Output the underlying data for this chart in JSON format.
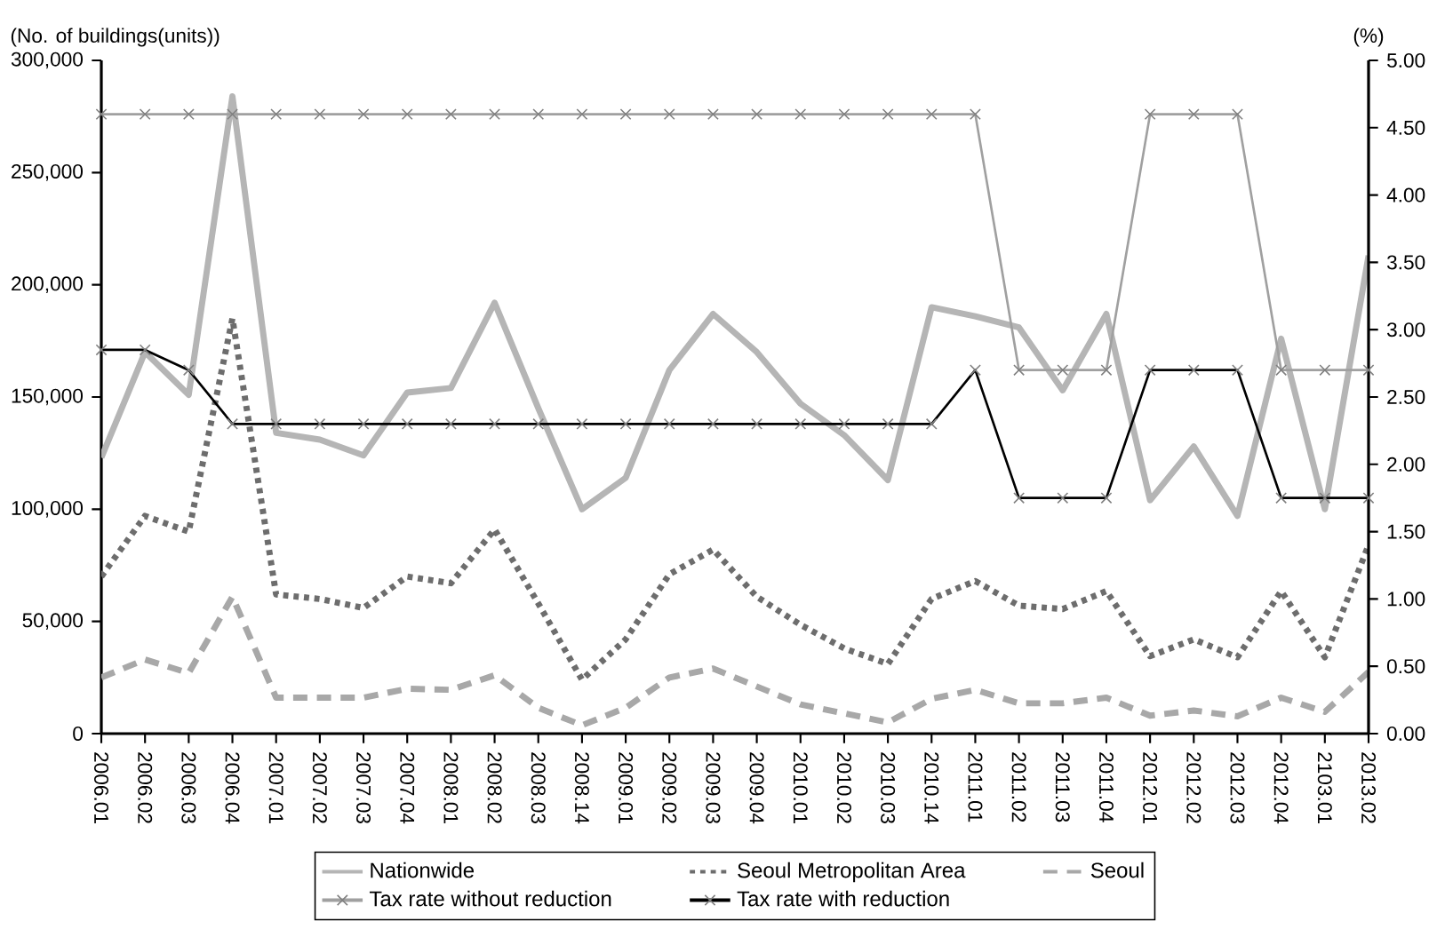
{
  "chart_data": {
    "type": "line",
    "ylabel": "(No. of buildings(units))",
    "y2label": "(%)",
    "categories": [
      "2006.01",
      "2006.02",
      "2006.03",
      "2006.04",
      "2007.01",
      "2007.02",
      "2007.03",
      "2007.04",
      "2008.01",
      "2008.02",
      "2008.03",
      "2008.14",
      "2009.01",
      "2009.02",
      "2009.03",
      "2009.04",
      "2010.01",
      "2010.02",
      "2010.03",
      "2010.14",
      "2011.01",
      "2011.02",
      "2011.03",
      "2011.04",
      "2012.01",
      "2012.02",
      "2012.03",
      "2012.04",
      "2103.01",
      "2013.02"
    ],
    "ylim": [
      0,
      300000
    ],
    "yticks": [
      {
        "value": 0,
        "label": "0"
      },
      {
        "value": 50000,
        "label": "50,000"
      },
      {
        "value": 100000,
        "label": "100,000"
      },
      {
        "value": 150000,
        "label": "150,000"
      },
      {
        "value": 200000,
        "label": "200,000"
      },
      {
        "value": 250000,
        "label": "250,000"
      },
      {
        "value": 300000,
        "label": "300,000"
      }
    ],
    "y2lim": [
      0,
      5
    ],
    "y2ticks": [
      {
        "value": 0,
        "label": "0.00"
      },
      {
        "value": 0.5,
        "label": "0.50"
      },
      {
        "value": 1,
        "label": "1.00"
      },
      {
        "value": 1.5,
        "label": "1.50"
      },
      {
        "value": 2,
        "label": "2.00"
      },
      {
        "value": 2.5,
        "label": "2.50"
      },
      {
        "value": 3,
        "label": "3.00"
      },
      {
        "value": 3.5,
        "label": "3.50"
      },
      {
        "value": 4,
        "label": "4.00"
      },
      {
        "value": 4.5,
        "label": "4.50"
      },
      {
        "value": 5,
        "label": "5.00"
      }
    ],
    "legend": "bottom",
    "grid": false,
    "series": [
      {
        "name": "Nationwide",
        "color": "#b5b5b5",
        "line_style": "solid",
        "marker": "none",
        "values": [
          123000,
          170000,
          151000,
          284000,
          134000,
          131000,
          124000,
          152000,
          154000,
          192000,
          145000,
          100000,
          114000,
          162000,
          187000,
          170000,
          147000,
          133000,
          113000,
          190000,
          186000,
          181000,
          153000,
          187000,
          104000,
          128000,
          97000,
          176000,
          100000,
          213000
        ]
      },
      {
        "name": "Seoul Metropolitan Area",
        "color": "#6d6d6d",
        "line_style": "dotted",
        "marker": "none",
        "values": [
          70000,
          97000,
          90000,
          185000,
          62000,
          60000,
          56000,
          70000,
          67000,
          91000,
          58000,
          24000,
          42000,
          71000,
          82000,
          61000,
          48500,
          38000,
          31000,
          60000,
          68000,
          57000,
          55500,
          63500,
          34500,
          42000,
          34000,
          63500,
          34000,
          84000
        ]
      },
      {
        "name": "Seoul",
        "color": "#a8a8a8",
        "line_style": "dashed",
        "marker": "none",
        "values": [
          25000,
          33000,
          27000,
          61000,
          16000,
          16000,
          16000,
          20000,
          19500,
          26000,
          11500,
          3700,
          11500,
          25000,
          29000,
          21000,
          13000,
          9000,
          5000,
          15500,
          19500,
          13500,
          13500,
          16000,
          8000,
          10300,
          7700,
          16000,
          9700,
          27500
        ]
      },
      {
        "name": "Tax rate without reduction",
        "color": "#a0a0a0",
        "line_style": "solid",
        "marker": "cross",
        "axis": "y2",
        "values": [
          4.6,
          4.6,
          4.6,
          4.6,
          4.6,
          4.6,
          4.6,
          4.6,
          4.6,
          4.6,
          4.6,
          4.6,
          4.6,
          4.6,
          4.6,
          4.6,
          4.6,
          4.6,
          4.6,
          4.6,
          4.6,
          2.7,
          2.7,
          2.7,
          4.6,
          4.6,
          4.6,
          2.7,
          2.7,
          2.7
        ]
      },
      {
        "name": "Tax rate with reduction",
        "color": "#000000",
        "line_style": "solid",
        "marker": "cross",
        "axis": "y2",
        "values": [
          2.85,
          2.85,
          2.7,
          2.3,
          2.3,
          2.3,
          2.3,
          2.3,
          2.3,
          2.3,
          2.3,
          2.3,
          2.3,
          2.3,
          2.3,
          2.3,
          2.3,
          2.3,
          2.3,
          2.3,
          2.7,
          1.75,
          1.75,
          1.75,
          2.7,
          2.7,
          2.7,
          1.75,
          1.75,
          1.75
        ]
      }
    ]
  }
}
